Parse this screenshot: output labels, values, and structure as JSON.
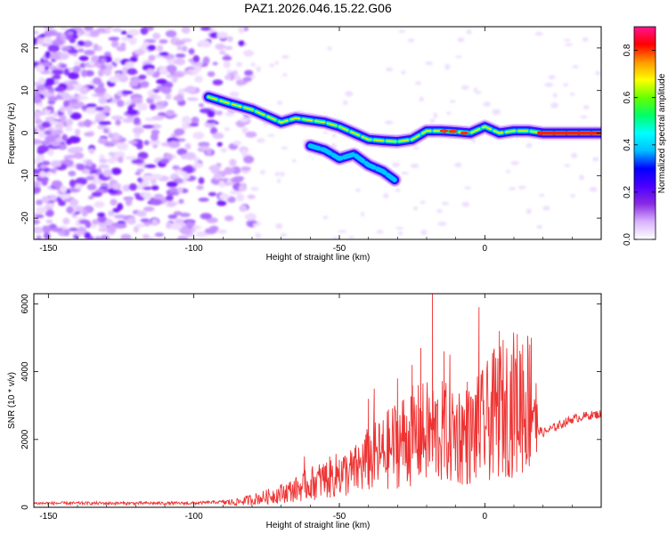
{
  "title": "PAZ1.2026.046.15.22.G06",
  "colors": {
    "line": "#ee3333",
    "axis": "#000000",
    "colorbar_stops": [
      "#ffffff",
      "#d9b3ff",
      "#8a2be2",
      "#4b00ff",
      "#0000ff",
      "#00bfff",
      "#00ffff",
      "#00ff66",
      "#66ff00",
      "#ffff00",
      "#ff9900",
      "#ff0000",
      "#ff1493"
    ]
  },
  "chart_data": [
    {
      "type": "heatmap",
      "title": "PAZ1.2026.046.15.22.G06",
      "xlabel": "Height of straight line (km)",
      "ylabel": "Frequency (Hz)",
      "xlim": [
        -155,
        40
      ],
      "ylim": [
        -25,
        25
      ],
      "xticks": [
        -150,
        -100,
        -50,
        0
      ],
      "xtick_labels": [
        "-150",
        "-100",
        "-50",
        "0"
      ],
      "yticks": [
        -20,
        -10,
        0,
        10,
        20
      ],
      "ytick_labels": [
        "-20",
        "-10",
        "0",
        "10",
        "20"
      ],
      "colorbar": {
        "label": "Normalized spectral amplitude",
        "range": [
          0,
          0.9
        ],
        "ticks": [
          0.0,
          0.2,
          0.4,
          0.6,
          0.8
        ],
        "tick_labels": [
          "0.0",
          "0.2",
          "0.4",
          "0.6",
          "0.8"
        ]
      },
      "ridges": [
        {
          "name": "main",
          "points": [
            [
              -95,
              8.5
            ],
            [
              -88,
              7
            ],
            [
              -80,
              5.5
            ],
            [
              -75,
              4
            ],
            [
              -70,
              2.5
            ],
            [
              -65,
              3.5
            ],
            [
              -60,
              3
            ],
            [
              -55,
              2.5
            ],
            [
              -50,
              1.5
            ],
            [
              -45,
              0
            ],
            [
              -40,
              -1.5
            ],
            [
              -35,
              -1.8
            ],
            [
              -30,
              -2
            ],
            [
              -25,
              -1.5
            ],
            [
              -20,
              0.5
            ],
            [
              -15,
              0.5
            ],
            [
              -10,
              0.3
            ],
            [
              -5,
              0
            ],
            [
              0,
              1.5
            ],
            [
              5,
              0
            ],
            [
              10,
              0.5
            ],
            [
              15,
              0.5
            ],
            [
              20,
              0
            ],
            [
              30,
              0
            ],
            [
              40,
              0
            ]
          ]
        },
        {
          "name": "secondary",
          "points": [
            [
              -60,
              -3
            ],
            [
              -55,
              -4
            ],
            [
              -50,
              -6
            ],
            [
              -45,
              -5
            ],
            [
              -40,
              -7.5
            ],
            [
              -35,
              -9
            ],
            [
              -31,
              -11
            ]
          ]
        }
      ]
    },
    {
      "type": "line",
      "xlabel": "Height of straight line (km)",
      "ylabel": "SNR (10 * v/v)",
      "xlim": [
        -155,
        40
      ],
      "ylim": [
        0,
        6300
      ],
      "xticks": [
        -150,
        -100,
        -50,
        0
      ],
      "xtick_labels": [
        "-150",
        "-100",
        "-50",
        "0"
      ],
      "yticks": [
        0,
        2000,
        4000,
        6000
      ],
      "ytick_labels": [
        "0",
        "2000",
        "4000",
        "6000"
      ],
      "envelope": [
        [
          -155,
          120
        ],
        [
          -100,
          120
        ],
        [
          -85,
          180
        ],
        [
          -75,
          350
        ],
        [
          -65,
          600
        ],
        [
          -60,
          800
        ],
        [
          -50,
          1100
        ],
        [
          -45,
          1200
        ],
        [
          -40,
          1600
        ],
        [
          -35,
          1800
        ],
        [
          -30,
          2200
        ],
        [
          -25,
          2400
        ],
        [
          -20,
          2500
        ],
        [
          -15,
          2500
        ],
        [
          -10,
          2500
        ],
        [
          -5,
          2400
        ],
        [
          0,
          2800
        ],
        [
          5,
          3300
        ],
        [
          10,
          3500
        ],
        [
          15,
          3600
        ],
        [
          17,
          3800
        ],
        [
          18,
          2300
        ],
        [
          20,
          2200
        ],
        [
          25,
          2400
        ],
        [
          30,
          2600
        ],
        [
          35,
          2700
        ],
        [
          40,
          2750
        ]
      ],
      "spikes": [
        [
          -62,
          1500
        ],
        [
          -55,
          1200
        ],
        [
          -50,
          1400
        ],
        [
          -40,
          3200
        ],
        [
          -38,
          3500
        ],
        [
          -30,
          3800
        ],
        [
          -25,
          4200
        ],
        [
          -22,
          4700
        ],
        [
          -18,
          6300
        ],
        [
          -14,
          4600
        ],
        [
          -12,
          4500
        ],
        [
          -6,
          3700
        ],
        [
          -2,
          5900
        ],
        [
          5,
          5200
        ],
        [
          10,
          4500
        ],
        [
          13,
          4800
        ],
        [
          16,
          5000
        ]
      ]
    }
  ]
}
